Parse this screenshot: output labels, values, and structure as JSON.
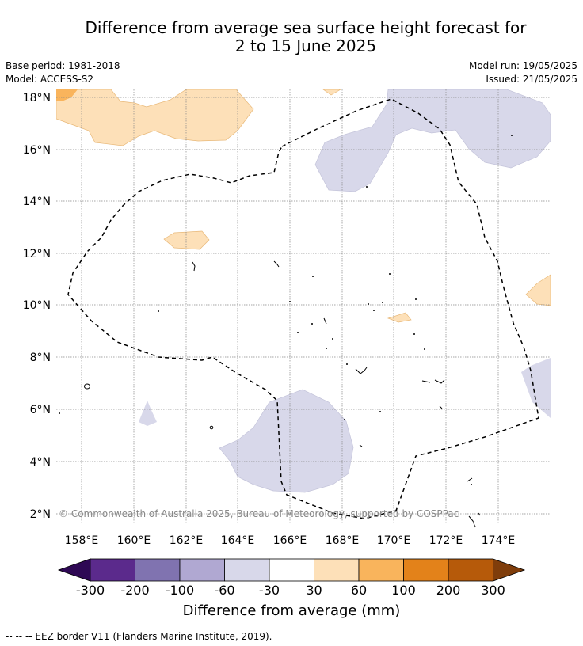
{
  "title_line1": "Difference from average sea surface height forecast for",
  "title_line2": "2 to 15 June 2025",
  "meta": {
    "base_period": "Base period: 1981-2018",
    "model": "Model: ACCESS-S2",
    "model_run": "Model run: 19/05/2025",
    "issued": "Issued: 21/05/2025"
  },
  "lat_labels": [
    "18°N",
    "16°N",
    "14°N",
    "12°N",
    "10°N",
    "8°N",
    "6°N",
    "4°N",
    "2°N"
  ],
  "lon_labels": [
    "158°E",
    "160°E",
    "162°E",
    "164°E",
    "166°E",
    "168°E",
    "170°E",
    "172°E",
    "174°E"
  ],
  "copyright": "© Commonwealth of Australia 2025, Bureau of Meteorology, supported by COSPPac",
  "colorbar": {
    "ticks": [
      "-300",
      "-200",
      "-100",
      "-60",
      "-30",
      "30",
      "60",
      "100",
      "200",
      "300"
    ],
    "colors": [
      "#2e0854",
      "#5b2a8c",
      "#8073b0",
      "#b0a8d2",
      "#d8d8ea",
      "#ffffff",
      "#fde0b8",
      "#f9b45c",
      "#e3821a",
      "#b65a0a",
      "#7f3d0b"
    ],
    "title": "Difference from average (mm)"
  },
  "footnote": "-- -- -- EEZ border V11 (Flanders Marine Institute, 2019)."
}
